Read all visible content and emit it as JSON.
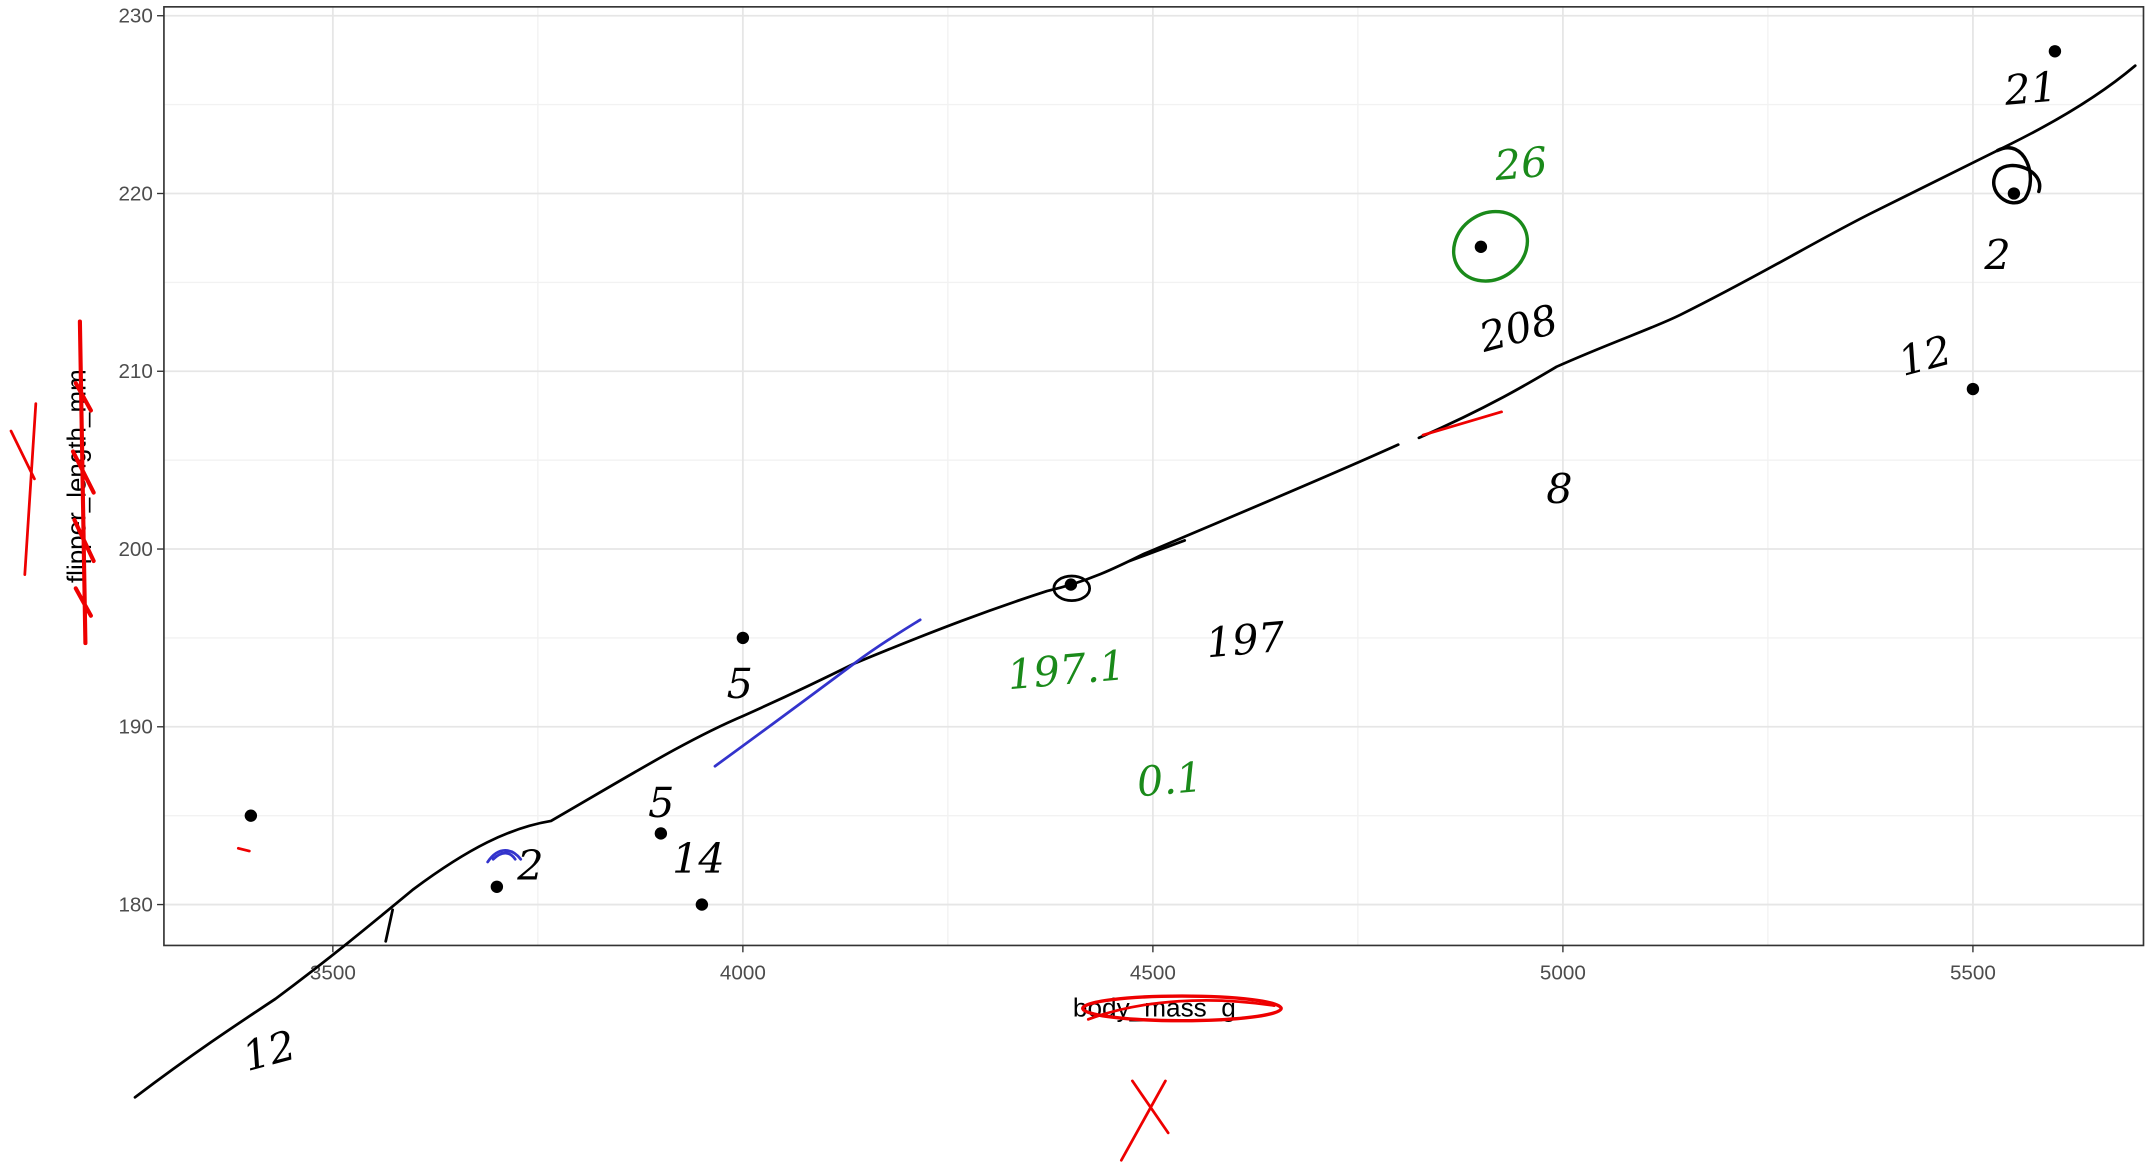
{
  "chart_data": {
    "type": "scatter",
    "x_label": "body_mass_g",
    "y_label": "flipper_length_mm",
    "x": [
      3400,
      3700,
      3900,
      3950,
      4000,
      4400,
      4900,
      5500,
      5550,
      5600
    ],
    "values": [
      185,
      181,
      184,
      180,
      195,
      198,
      217,
      209,
      220,
      228
    ],
    "color": "#000000",
    "xlim": [
      3294,
      5708
    ],
    "xticks": [
      3500,
      4000,
      4500,
      5000,
      5500
    ],
    "ylim": [
      177.7,
      230.5
    ],
    "yticks": [
      180,
      190,
      200,
      210,
      220,
      230
    ],
    "grid": true,
    "annotations": [
      {
        "text": "12",
        "color": "#000000"
      },
      {
        "text": "5",
        "color": "#000000"
      },
      {
        "text": "5",
        "color": "#000000"
      },
      {
        "text": "14",
        "color": "#000000"
      },
      {
        "text": "2",
        "color": "#000000"
      },
      {
        "text": "197.1",
        "color": "#1a8a1a"
      },
      {
        "text": "197",
        "color": "#000000"
      },
      {
        "text": "0.1",
        "color": "#1a8a1a"
      },
      {
        "text": "26",
        "color": "#1a8a1a"
      },
      {
        "text": "208",
        "color": "#000000"
      },
      {
        "text": "8",
        "color": "#000000"
      },
      {
        "text": "12",
        "color": "#000000"
      },
      {
        "text": "2",
        "color": "#000000"
      },
      {
        "text": "21",
        "color": "#000000"
      }
    ]
  }
}
